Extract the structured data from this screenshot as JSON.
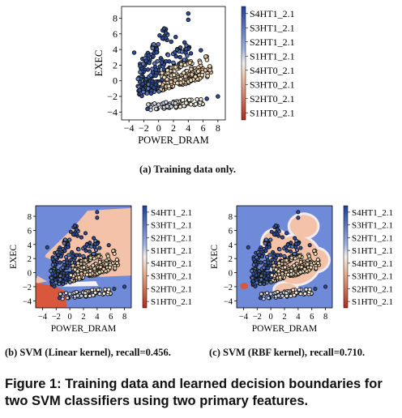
{
  "figure_caption": "Figure 1: Training data and learned decision boundaries for two SVM classifiers using two primary features.",
  "colors": {
    "blue_region": "#6f8ad9",
    "red_region": "#d9573c",
    "pale_region": "#f3c2a8",
    "scale_top": "#1f3f9a",
    "scale_mid": "#f3efe8",
    "scale_bottom": "#b02a1a",
    "point_edge": "#111111"
  },
  "chart_data": [
    {
      "type": "scatter",
      "subcaption": "(a) Training data only.",
      "xlabel": "POWER_DRAM",
      "ylabel": "EXEC",
      "xticks": [
        "−4",
        "−2",
        "0",
        "2",
        "4",
        "6",
        "8"
      ],
      "yticks": [
        "8",
        "6",
        "4",
        "2",
        "0",
        "−2",
        "−4"
      ],
      "xlim": [
        -5,
        9
      ],
      "ylim": [
        -5,
        9.5
      ],
      "background": "none",
      "legend": [
        "S4HT1_2.1",
        "S3HT1_2.1",
        "S2HT1_2.1",
        "S1HT1_2.1",
        "S4HT0_2.1",
        "S3HT0_2.1",
        "S2HT0_2.1",
        "S1HT0_2.1"
      ],
      "bands": [
        {
          "x0": -2.4,
          "y0": 1.6,
          "x1": 1.2,
          "y1": 6.3,
          "w": 0.8
        },
        {
          "x0": -2.8,
          "y0": 0.2,
          "x1": 4.3,
          "y1": 4.0,
          "w": 1.0
        },
        {
          "x0": -3.0,
          "y0": -0.6,
          "x1": 6.8,
          "y1": 2.4,
          "w": 0.9
        },
        {
          "x0": -3.0,
          "y0": -1.2,
          "x1": 7.5,
          "y1": 1.2,
          "w": 0.8
        },
        {
          "x0": -2.6,
          "y0": -1.6,
          "x1": 5.2,
          "y1": 0.5,
          "w": 0.5
        },
        {
          "x0": -1.4,
          "y0": -3.4,
          "x1": 6.0,
          "y1": -2.6,
          "w": 0.45
        }
      ],
      "outliers": [
        [
          4.0,
          8.6
        ],
        [
          4.0,
          7.8
        ],
        [
          1.7,
          5.0
        ],
        [
          2.3,
          5.6
        ],
        [
          3.5,
          4.9
        ],
        [
          5.7,
          3.9
        ],
        [
          8.0,
          -2.0
        ],
        [
          6.5,
          -2.3
        ],
        [
          -1.5,
          -3.6
        ],
        [
          -3.3,
          3.6
        ]
      ]
    },
    {
      "type": "scatter",
      "subcaption": "(b) SVM (Linear kernel), recall=0.456.",
      "xlabel": "POWER_DRAM",
      "ylabel": "EXEC",
      "xticks": [
        "−4",
        "−2",
        "0",
        "2",
        "4",
        "6",
        "8"
      ],
      "yticks": [
        "8",
        "6",
        "4",
        "2",
        "0",
        "−2",
        "−4"
      ],
      "xlim": [
        -5,
        9
      ],
      "ylim": [
        -5,
        9.5
      ],
      "background": "linear",
      "legend": [
        "S4HT1_2.1",
        "S3HT1_2.1",
        "S2HT1_2.1",
        "S1HT1_2.1",
        "S4HT0_2.1",
        "S3HT0_2.1",
        "S2HT0_2.1",
        "S1HT0_2.1"
      ]
    },
    {
      "type": "scatter",
      "subcaption": "(c) SVM (RBF kernel), recall=0.710.",
      "xlabel": "POWER_DRAM",
      "ylabel": "EXEC",
      "xticks": [
        "−4",
        "−2",
        "0",
        "2",
        "4",
        "6",
        "8"
      ],
      "yticks": [
        "8",
        "6",
        "4",
        "2",
        "0",
        "−2",
        "−4"
      ],
      "xlim": [
        -5,
        9
      ],
      "ylim": [
        -5,
        9.5
      ],
      "background": "rbf",
      "legend": [
        "S4HT1_2.1",
        "S3HT1_2.1",
        "S2HT1_2.1",
        "S1HT1_2.1",
        "S4HT0_2.1",
        "S3HT0_2.1",
        "S2HT0_2.1",
        "S1HT0_2.1"
      ]
    }
  ]
}
